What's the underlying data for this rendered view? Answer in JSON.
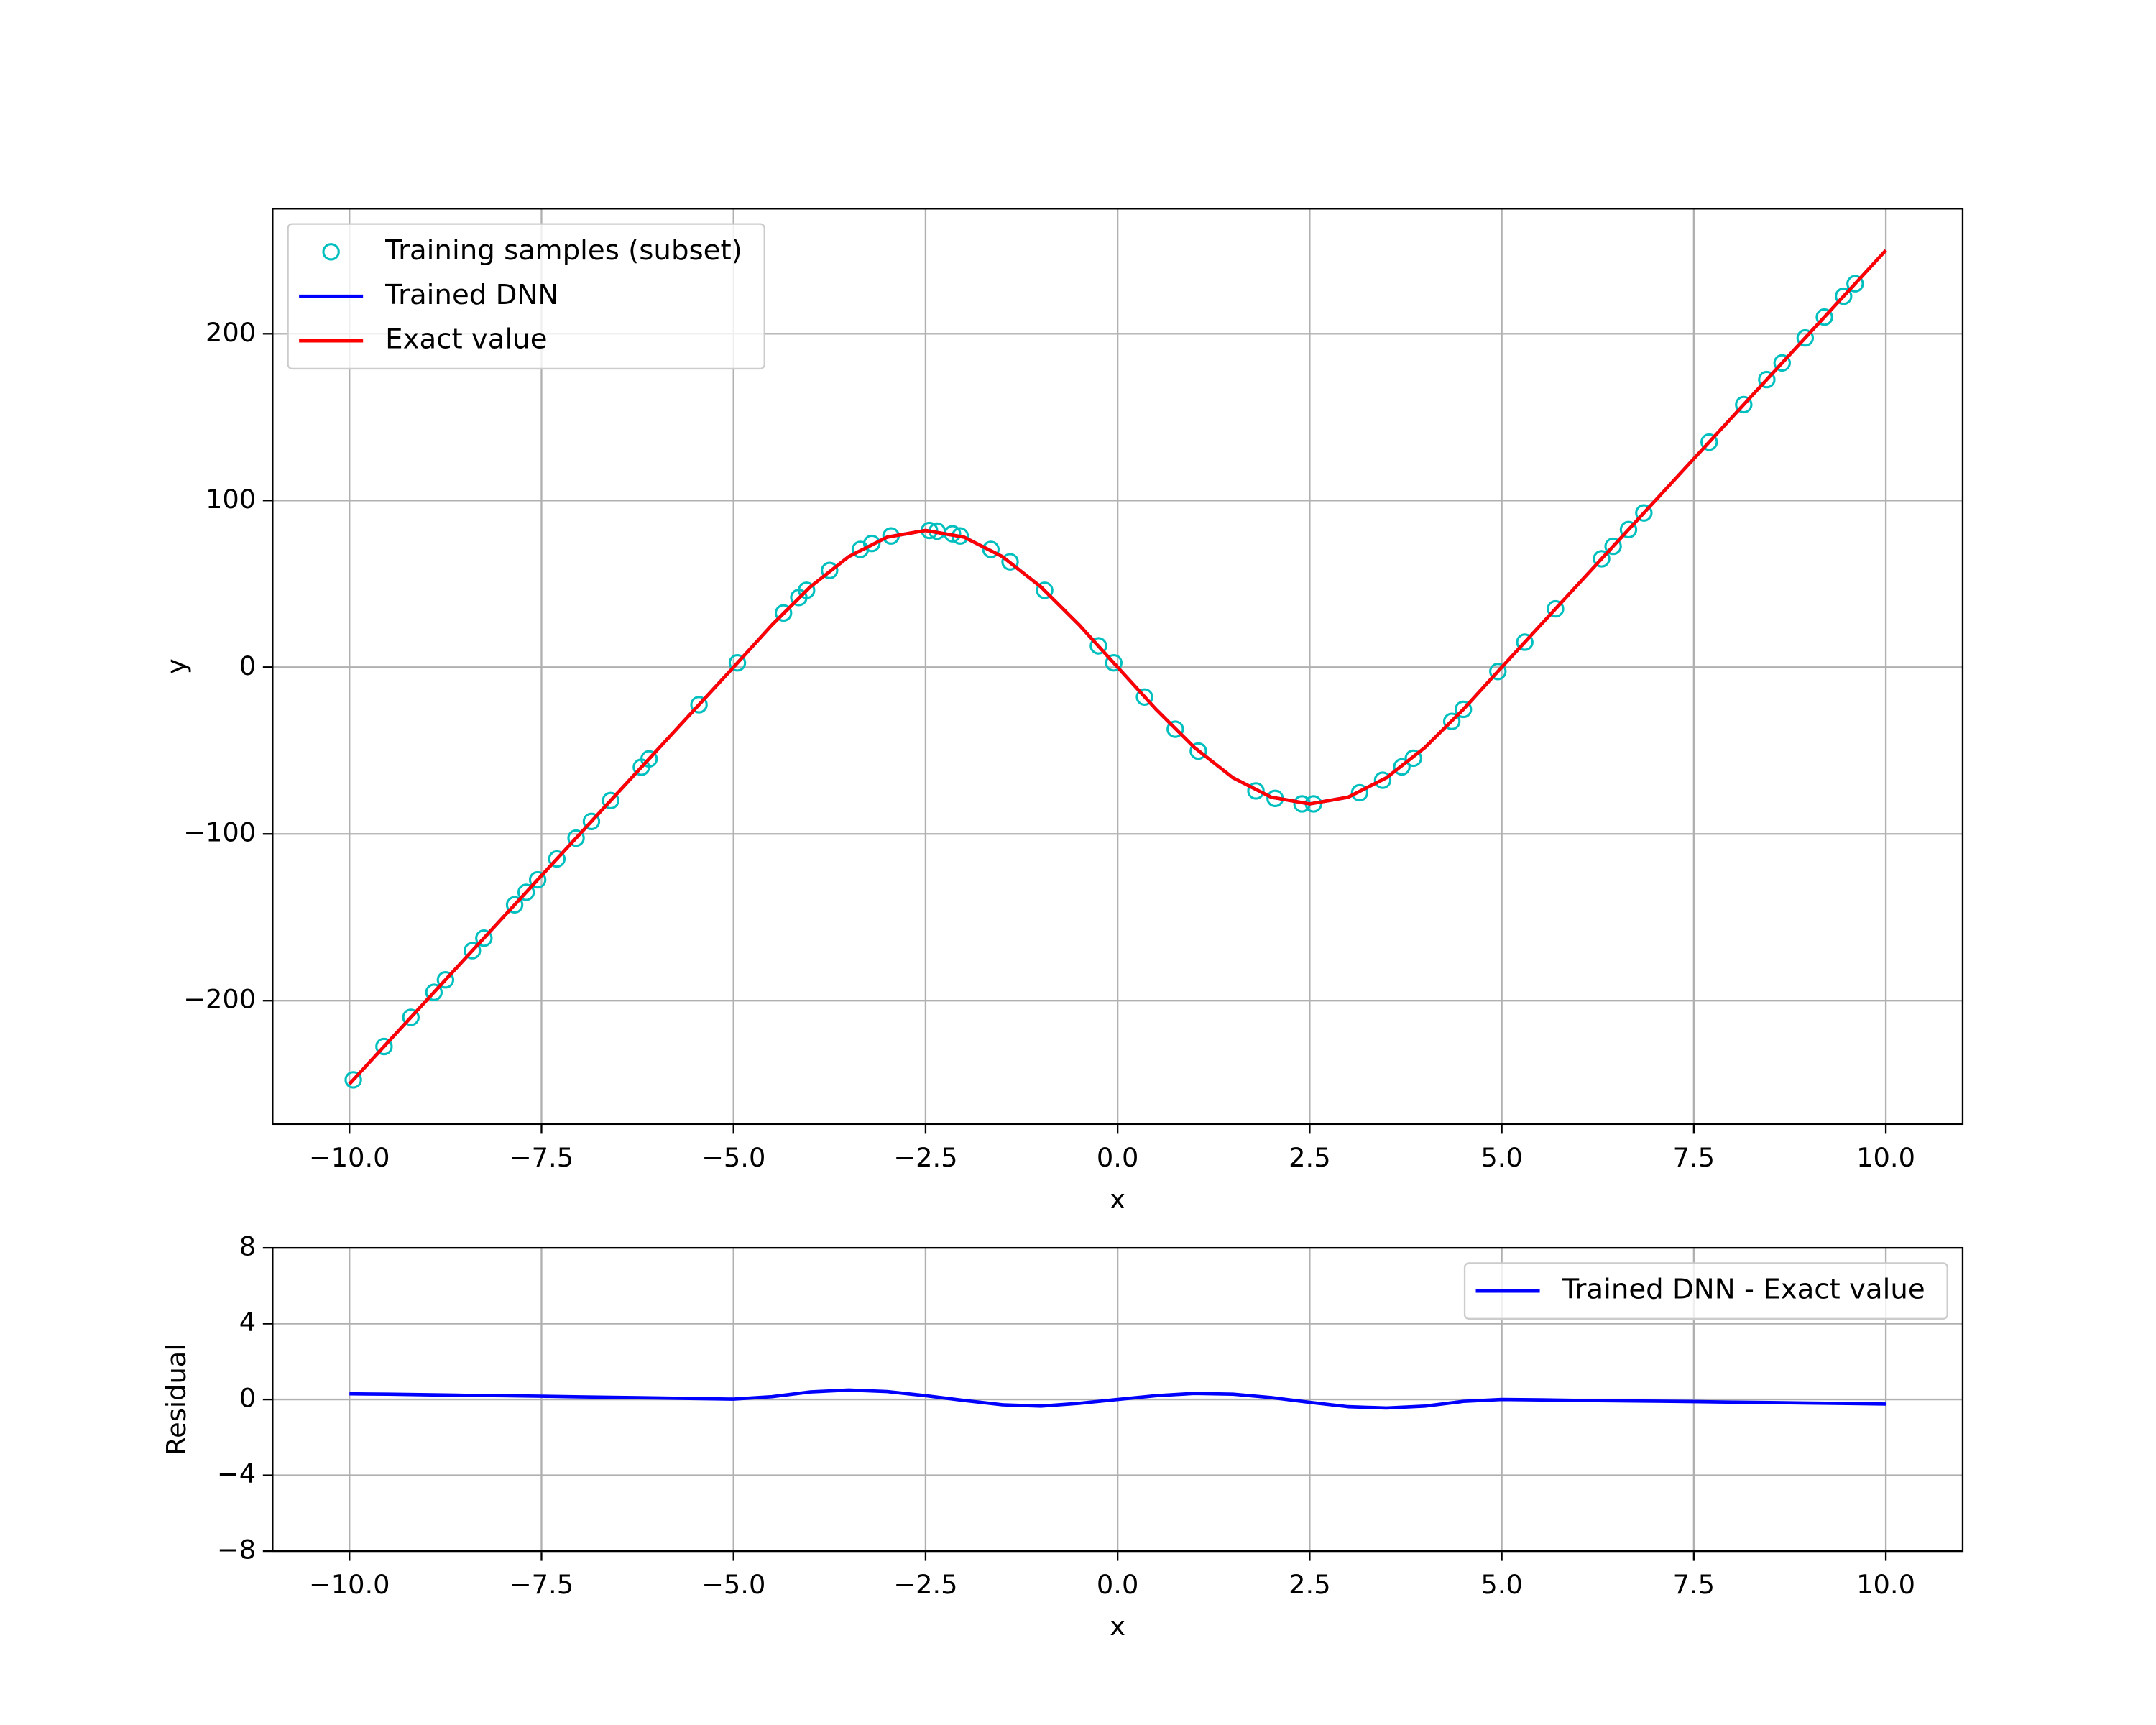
{
  "chart_data": [
    {
      "type": "line",
      "xlabel": "x",
      "ylabel": "y",
      "grid": true,
      "legend": "upper left",
      "xlim": [
        -11,
        11
      ],
      "ylim": [
        -274,
        275
      ],
      "xticks": [
        {
          "value": -10,
          "label": "−10.0"
        },
        {
          "value": -7.5,
          "label": "−7.5"
        },
        {
          "value": -5,
          "label": "−5.0"
        },
        {
          "value": -2.5,
          "label": "−2.5"
        },
        {
          "value": 0,
          "label": "0.0"
        },
        2.5,
        {
          "value": 5,
          "label": "5.0"
        },
        7.5,
        {
          "value": 10,
          "label": "10.0"
        }
      ],
      "yticks": [
        {
          "value": -200,
          "label": "−200"
        },
        {
          "value": -100,
          "label": "−100"
        },
        0,
        100,
        200
      ],
      "x": [
        -10,
        -9.5,
        -9,
        -8.5,
        -8,
        -7.5,
        -7,
        -6.5,
        -6,
        -5.5,
        -5,
        -4.5,
        -4,
        -3.5,
        -3,
        -2.5,
        -2,
        -1.5,
        -1,
        -0.5,
        0,
        0.5,
        1,
        1.5,
        2,
        2.5,
        3,
        3.5,
        4,
        4.5,
        5,
        5.5,
        6,
        6.5,
        7,
        7.5,
        8,
        8.5,
        9,
        9.5,
        10
      ],
      "series": [
        {
          "name": "Training samples (subset)",
          "color": "#00bfbf",
          "style": "markers",
          "x": [
            -9.95,
            -9.55,
            -9.2,
            -8.9,
            -8.75,
            -8.4,
            -8.25,
            -7.85,
            -7.7,
            -7.55,
            -7.3,
            -7.05,
            -6.85,
            -6.6,
            -6.2,
            -6.1,
            -5.45,
            -4.95,
            -4.35,
            -4.15,
            -4.05,
            -3.75,
            -3.35,
            -3.2,
            -2.95,
            -2.45,
            -2.35,
            -2.15,
            -2.05,
            -1.65,
            -1.4,
            -0.95,
            -0.25,
            -0.05,
            0.35,
            0.75,
            1.05,
            1.8,
            2.05,
            2.4,
            2.55,
            3.15,
            3.45,
            3.7,
            3.85,
            4.35,
            4.5,
            4.95,
            5.3,
            5.7,
            6.3,
            6.45,
            6.65,
            6.85,
            7.7,
            8.15,
            8.45,
            8.65,
            8.95,
            9.2,
            9.45,
            9.6
          ],
          "values": [
            -247.5,
            -227.5,
            -210,
            -195,
            -187.5,
            -170,
            -162.5,
            -142.5,
            -135,
            -127.5,
            -115,
            -102.5,
            -92.5,
            -80,
            -60,
            -55,
            -22.5,
            2.6,
            32.5,
            41.8,
            46.1,
            58.0,
            70.6,
            74.2,
            78.7,
            82.0,
            81.6,
            80.0,
            78.7,
            70.6,
            63.2,
            46.1,
            12.8,
            2.6,
            -17.9,
            -37.2,
            -50.3,
            -74.2,
            -78.7,
            -82.0,
            -82.0,
            -75.3,
            -67.8,
            -59.8,
            -54.6,
            -32.5,
            -25.3,
            -2.6,
            15,
            35,
            65,
            72.5,
            82.5,
            92.5,
            135,
            157.5,
            172.5,
            182.5,
            197.5,
            210,
            222.5,
            230
          ]
        },
        {
          "name": "Trained DNN",
          "color": "#0000ff",
          "style": "line",
          "values": [
            -250,
            -225,
            -200,
            -175,
            -150,
            -125,
            -100,
            -75,
            -50,
            -25,
            0,
            25.3,
            48.2,
            66.3,
            78.0,
            82,
            78.0,
            66.3,
            48.2,
            25.3,
            0,
            -25.3,
            -48.2,
            -66.3,
            -78.0,
            -82,
            -78.0,
            -66.3,
            -48.2,
            -25.3,
            0,
            25,
            50,
            75,
            100,
            125,
            150,
            175,
            200,
            225,
            250
          ]
        },
        {
          "name": "Exact value",
          "color": "#ff0000",
          "style": "line",
          "values": [
            -250,
            -225,
            -200,
            -175,
            -150,
            -125,
            -100,
            -75,
            -50,
            -25,
            0,
            25.3,
            48.2,
            66.3,
            78.0,
            82,
            78.0,
            66.3,
            48.2,
            25.3,
            0,
            -25.3,
            -48.2,
            -66.3,
            -78.0,
            -82,
            -78.0,
            -66.3,
            -48.2,
            -25.3,
            0,
            25,
            50,
            75,
            100,
            125,
            150,
            175,
            200,
            225,
            250
          ]
        }
      ]
    },
    {
      "type": "line",
      "xlabel": "x",
      "ylabel": "Residual",
      "grid": true,
      "legend": "upper right",
      "xlim": [
        -11,
        11
      ],
      "ylim": [
        -8,
        8
      ],
      "xticks": [
        {
          "value": -10,
          "label": "−10.0"
        },
        {
          "value": -7.5,
          "label": "−7.5"
        },
        {
          "value": -5,
          "label": "−5.0"
        },
        {
          "value": -2.5,
          "label": "−2.5"
        },
        {
          "value": 0,
          "label": "0.0"
        },
        2.5,
        {
          "value": 5,
          "label": "5.0"
        },
        7.5,
        {
          "value": 10,
          "label": "10.0"
        }
      ],
      "yticks": [
        {
          "value": -8,
          "label": "−8"
        },
        {
          "value": -4,
          "label": "−4"
        },
        0,
        4,
        8
      ],
      "x": [
        -10,
        -9.5,
        -9,
        -8.5,
        -8,
        -7.5,
        -7,
        -6.5,
        -6,
        -5.5,
        -5,
        -4.5,
        -4,
        -3.5,
        -3,
        -2.5,
        -2,
        -1.5,
        -1,
        -0.5,
        0,
        0.5,
        1,
        1.5,
        2,
        2.5,
        3,
        3.5,
        4,
        4.5,
        5,
        5.5,
        6,
        6.5,
        7,
        7.5,
        8,
        8.5,
        9,
        9.5,
        10
      ],
      "series": [
        {
          "name": "Trained DNN - Exact value",
          "color": "#0000ff",
          "style": "line",
          "values": [
            0.3,
            0.28,
            0.25,
            0.22,
            0.2,
            0.17,
            0.14,
            0.11,
            0.08,
            0.05,
            0.02,
            0.15,
            0.4,
            0.5,
            0.42,
            0.2,
            -0.05,
            -0.28,
            -0.35,
            -0.2,
            0,
            0.2,
            0.32,
            0.28,
            0.1,
            -0.15,
            -0.38,
            -0.45,
            -0.35,
            -0.1,
            0,
            -0.02,
            -0.05,
            -0.07,
            -0.09,
            -0.11,
            -0.14,
            -0.16,
            -0.19,
            -0.21,
            -0.24
          ]
        }
      ]
    }
  ]
}
